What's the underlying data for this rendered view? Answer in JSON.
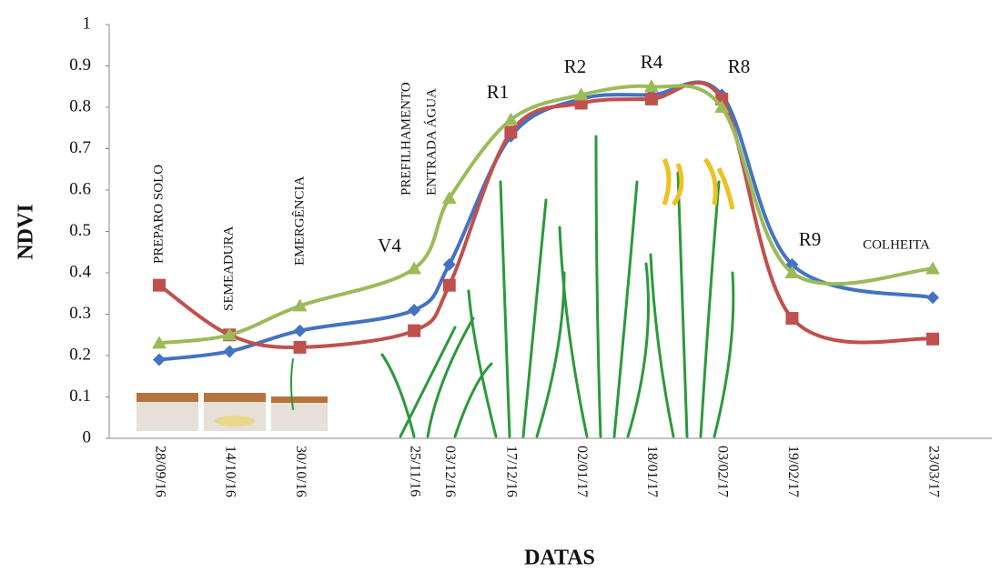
{
  "chart_data": {
    "type": "line",
    "y_label": "NDVI",
    "x_label": "DATAS",
    "categories": [
      "28/09/16",
      "14/10/16",
      "30/10/16",
      "25/11/16",
      "03/12/16",
      "17/12/16",
      "02/01/17",
      "18/01/17",
      "03/02/17",
      "19/02/17",
      "23/03/17"
    ],
    "series": [
      {
        "color": "#4472c4",
        "marker": "diamond",
        "values": [
          0.19,
          0.21,
          0.26,
          0.31,
          0.42,
          0.73,
          0.82,
          0.83,
          0.83,
          0.42,
          0.34
        ]
      },
      {
        "color": "#c0504d",
        "marker": "square",
        "values": [
          0.37,
          0.25,
          0.22,
          0.26,
          0.37,
          0.74,
          0.81,
          0.82,
          0.82,
          0.29,
          0.24
        ]
      },
      {
        "color": "#9bbb59",
        "marker": "triangle",
        "values": [
          0.23,
          0.25,
          0.32,
          0.41,
          0.58,
          0.77,
          0.83,
          0.85,
          0.8,
          0.4,
          0.41
        ]
      }
    ],
    "ylim": [
      0,
      1
    ],
    "yticks": [
      0,
      0.1,
      0.2,
      0.3,
      0.4,
      0.5,
      0.6,
      0.7,
      0.8,
      0.9,
      1
    ],
    "grid": false,
    "smooth": true,
    "annotations": [
      "PREPARO SOLO",
      "SEMEADURA",
      "EMERGÊNCIA",
      "PREFILHAMENTO",
      "ENTRADA ÁGUA",
      "V4",
      "R1",
      "R2",
      "R4",
      "R8",
      "R9",
      "COLHEITA"
    ]
  }
}
